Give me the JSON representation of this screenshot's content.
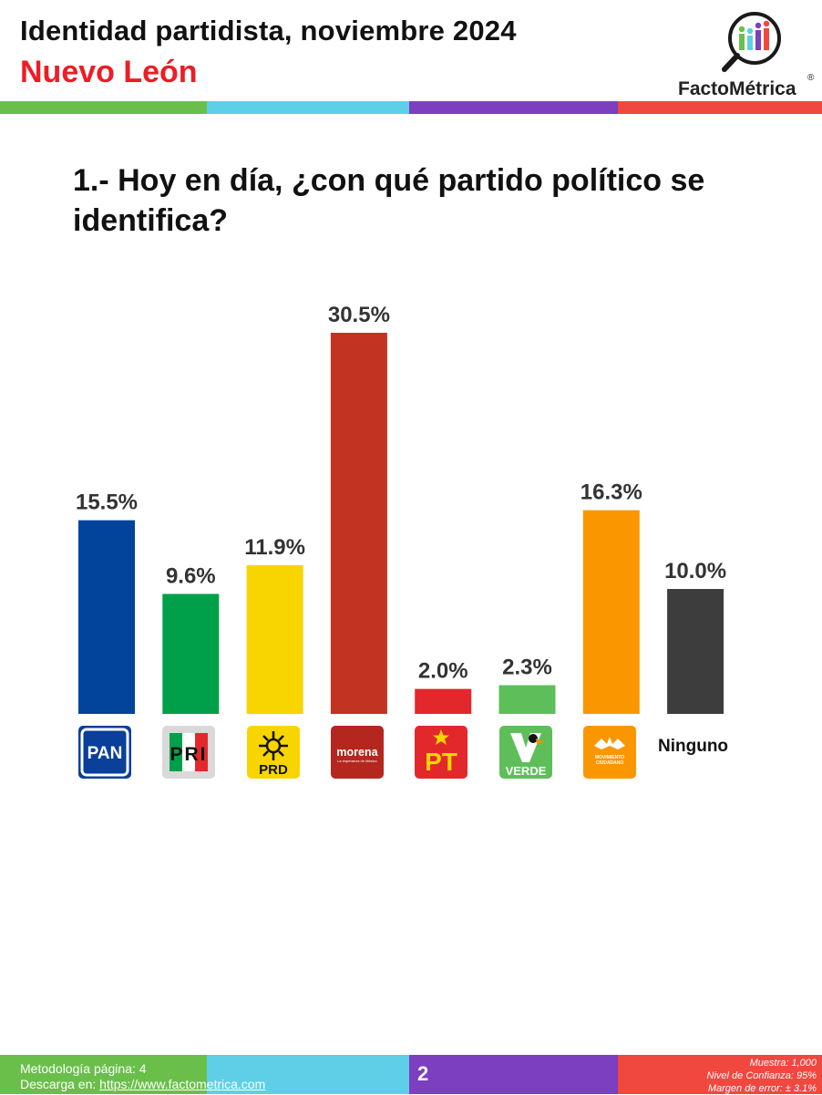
{
  "header": {
    "title": "Identidad partidista, noviembre 2024",
    "subtitle": "Nuevo León",
    "subtitle_color": "#ee1c25"
  },
  "brand": {
    "name": "FactoMétrica",
    "registered": "®",
    "stripe_colors": [
      "#6abf4b",
      "#5ecfe6",
      "#7b3fbf",
      "#f0473f"
    ]
  },
  "question": "1.- Hoy en día, ¿con qué partido político se identifica?",
  "chart_data": {
    "type": "bar",
    "categories": [
      "PAN",
      "PRI",
      "PRD",
      "morena",
      "PT",
      "VERDE",
      "MOVIMIENTO CIUDADANO",
      "Ninguno"
    ],
    "values": [
      15.5,
      9.6,
      11.9,
      30.5,
      2.0,
      2.3,
      16.3,
      10.0
    ],
    "data_labels": [
      "15.5%",
      "9.6%",
      "11.9%",
      "30.5%",
      "2.0%",
      "2.3%",
      "16.3%",
      "10.0%"
    ],
    "colors": [
      "#02449c",
      "#00a04a",
      "#f9d500",
      "#c23321",
      "#e3282b",
      "#5ebf5a",
      "#fa9700",
      "#3d3d3d"
    ],
    "ylim": [
      0,
      30.5
    ],
    "grid": false,
    "legend": "none"
  },
  "party_logos": {
    "pan": "PAN",
    "pri": "PRI",
    "prd": "PRD",
    "morena": "morena",
    "morena_tagline": "La esperanza de México",
    "pt": "PT",
    "verde": "VERDE",
    "mc_line1": "MOVIMIENTO",
    "mc_line2": "CIUDADANO",
    "ninguno": "Ninguno"
  },
  "footer": {
    "methodology": "Metodología página: 4",
    "download_prefix": "Descarga en: ",
    "download_url": "https://www.factometrica.com",
    "page_number": "2",
    "sample": "Muestra:  1,000",
    "confidence": "Nivel de Confianza: 95%",
    "margin": "Margen de error: ± 3.1%"
  }
}
